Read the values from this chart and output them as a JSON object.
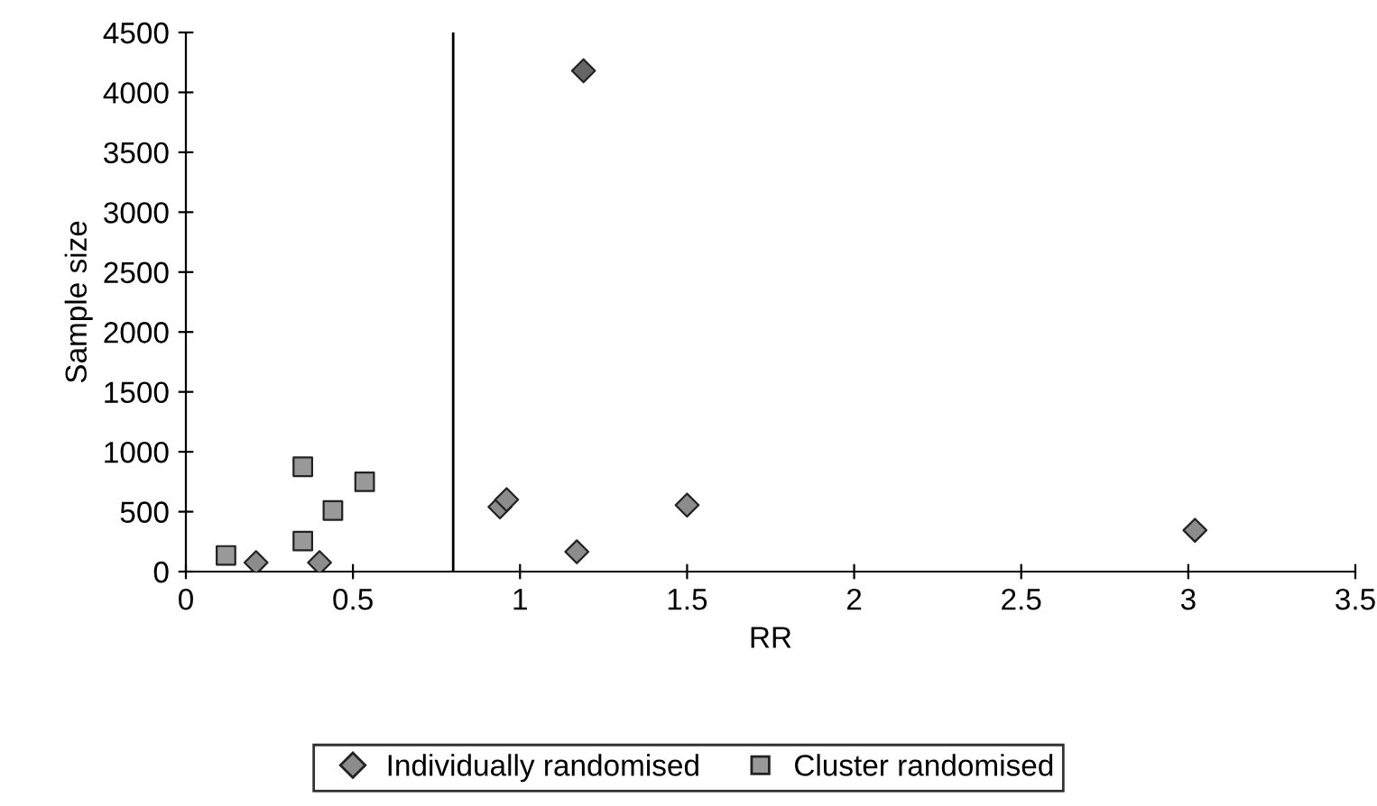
{
  "chart_data": {
    "type": "scatter",
    "xlabel": "RR",
    "ylabel": "Sample size",
    "series": [
      {
        "name": "Individually randomised",
        "color": "#8c8c8c",
        "marker": "diamond",
        "colors": [
          "#8c8c8c",
          "#8c8c8c",
          "#8c8c8c",
          "#8c8c8c",
          "#666666",
          "#8c8c8c",
          "#8c8c8c",
          "#8c8c8c"
        ],
        "x": [
          0.21,
          0.4,
          0.94,
          0.96,
          1.19,
          1.17,
          1.5,
          3.02
        ],
        "values": [
          75,
          75,
          540,
          600,
          4180,
          165,
          555,
          345
        ]
      },
      {
        "name": "Cluster randomised",
        "color": "#999999",
        "marker": "square",
        "x": [
          0.12,
          0.35,
          0.35,
          0.44,
          0.535
        ],
        "values": [
          135,
          255,
          875,
          510,
          750
        ]
      }
    ],
    "ref_lines": [
      {
        "axis": "x",
        "value": 0.8,
        "color": "#000000"
      }
    ],
    "xlim": [
      0,
      3.5
    ],
    "xticks": [
      0,
      0.5,
      1,
      1.5,
      2,
      2.5,
      3,
      3.5
    ],
    "ylim": [
      0,
      4500
    ],
    "yticks": [
      0,
      500,
      1000,
      1500,
      2000,
      2500,
      3000,
      3500,
      4000,
      4500
    ],
    "grid": false,
    "legend": "bottom"
  }
}
